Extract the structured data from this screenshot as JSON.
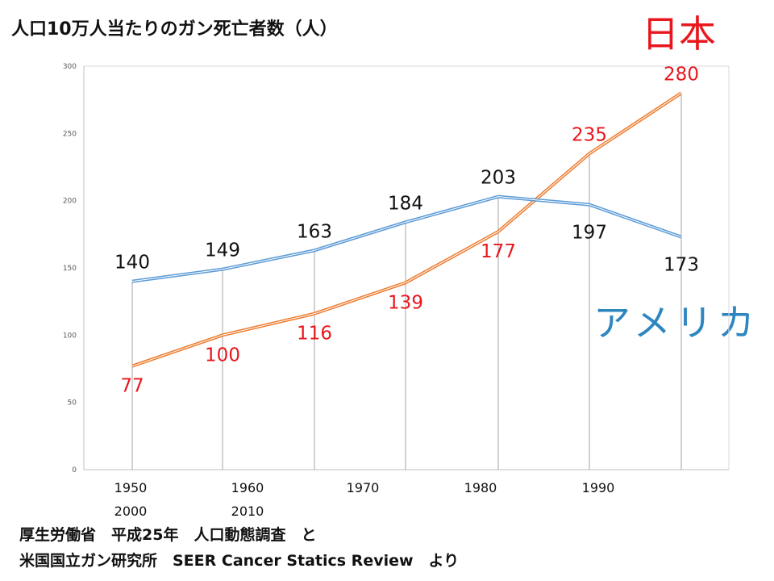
{
  "title": "人口10万人当たりのガン死亡者数（人）",
  "japan_label": "日本",
  "usa_label": "アメリカ",
  "source": {
    "line1": "厚生労働省　平成25年　人口動態調査　と",
    "line2": "米国国立ガン研究所　SEER Cancer Statics Review　より"
  },
  "chart_data": {
    "type": "line",
    "ylim": [
      0,
      300
    ],
    "y_ticks": [
      0,
      50,
      100,
      150,
      200,
      250,
      300
    ],
    "x_tick_labels": [
      {
        "line1": "1950",
        "line2": "2000"
      },
      {
        "line1": "1960",
        "line2": "2010"
      },
      {
        "line1": "1970",
        "line2": ""
      },
      {
        "line1": "1980",
        "line2": ""
      },
      {
        "line1": "1990",
        "line2": ""
      }
    ],
    "series": [
      {
        "name": "日本",
        "color": "#e8171e",
        "line_color": "#ed7d31",
        "values": [
          77,
          100,
          116,
          139,
          177,
          235,
          280
        ]
      },
      {
        "name": "アメリカ",
        "color": "#111111",
        "line_color": "#5b9bd5",
        "values": [
          140,
          149,
          163,
          184,
          203,
          197,
          173
        ]
      }
    ],
    "grid": "vertical drop lines",
    "legend": "none"
  }
}
